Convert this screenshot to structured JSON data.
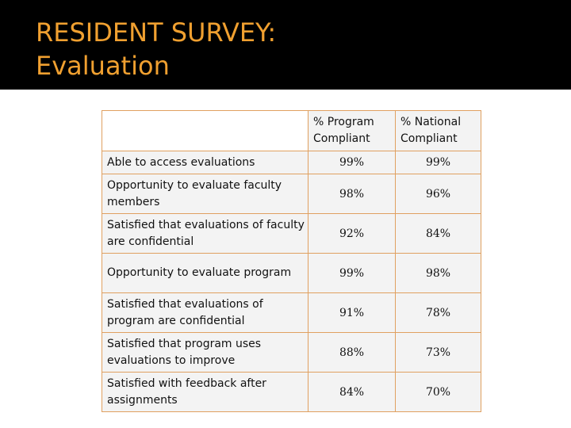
{
  "slide": {
    "title_line1": "RESIDENT SURVEY:",
    "title_line2": "Evaluation",
    "colors": {
      "background": "#000000",
      "title": "#f0a030",
      "table_border": "#e0a060",
      "cell_fill": "#f3f3f3"
    }
  },
  "table": {
    "headers": [
      "",
      "% Program Compliant",
      "% National Compliant"
    ],
    "rows": [
      {
        "label": "Able to access evaluations",
        "program": "99%",
        "national": "99%"
      },
      {
        "label": "Opportunity to evaluate faculty members",
        "program": "98%",
        "national": "96%"
      },
      {
        "label": "Satisfied that evaluations of faculty are confidential",
        "program": "92%",
        "national": "84%"
      },
      {
        "label": "Opportunity to evaluate program",
        "program": "99%",
        "national": "98%"
      },
      {
        "label": "Satisfied that evaluations of program are confidential",
        "program": "91%",
        "national": "78%"
      },
      {
        "label": "Satisfied that program uses evaluations to improve",
        "program": "88%",
        "national": "73%"
      },
      {
        "label": "Satisfied with feedback after assignments",
        "program": "84%",
        "national": "70%"
      }
    ]
  }
}
